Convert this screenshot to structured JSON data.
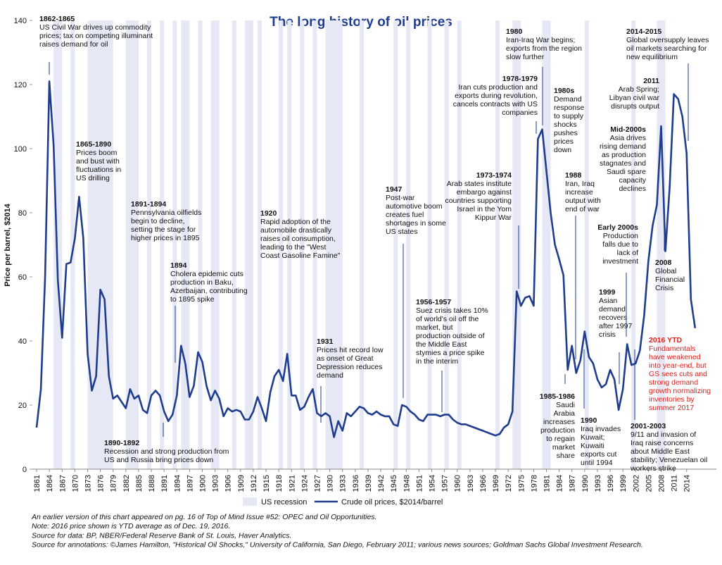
{
  "chart_data": {
    "type": "line",
    "title": "The long history of oil prices",
    "ylabel": "Price per barrel, $2014",
    "x": [
      1861,
      1862,
      1863,
      1864,
      1865,
      1866,
      1867,
      1868,
      1869,
      1870,
      1871,
      1872,
      1873,
      1874,
      1875,
      1876,
      1877,
      1878,
      1879,
      1880,
      1881,
      1882,
      1883,
      1884,
      1885,
      1886,
      1887,
      1888,
      1889,
      1890,
      1891,
      1892,
      1893,
      1894,
      1895,
      1896,
      1897,
      1898,
      1899,
      1900,
      1901,
      1902,
      1903,
      1904,
      1905,
      1906,
      1907,
      1908,
      1909,
      1910,
      1911,
      1912,
      1913,
      1914,
      1915,
      1916,
      1917,
      1918,
      1919,
      1920,
      1921,
      1922,
      1923,
      1924,
      1925,
      1926,
      1927,
      1928,
      1929,
      1930,
      1931,
      1932,
      1933,
      1934,
      1935,
      1936,
      1937,
      1938,
      1939,
      1940,
      1941,
      1942,
      1943,
      1944,
      1945,
      1946,
      1947,
      1948,
      1949,
      1950,
      1951,
      1952,
      1953,
      1954,
      1955,
      1956,
      1957,
      1958,
      1959,
      1960,
      1961,
      1962,
      1963,
      1964,
      1965,
      1966,
      1967,
      1968,
      1969,
      1970,
      1971,
      1972,
      1973,
      1974,
      1975,
      1976,
      1977,
      1978,
      1979,
      1980,
      1981,
      1982,
      1983,
      1984,
      1985,
      1986,
      1987,
      1988,
      1989,
      1990,
      1991,
      1992,
      1993,
      1994,
      1995,
      1996,
      1997,
      1998,
      1999,
      2000,
      2001,
      2002,
      2003,
      2004,
      2005,
      2006,
      2007,
      2008,
      2009,
      2010,
      2011,
      2012,
      2013,
      2014,
      2015,
      2016
    ],
    "series": [
      {
        "name": "Crude oil prices, $2014/barrel",
        "color": "#1f3c8f",
        "values": [
          13,
          25,
          60,
          121,
          101,
          59,
          41,
          64,
          64.5,
          72,
          85,
          72,
          36,
          24.5,
          29,
          56,
          53,
          29,
          22,
          23,
          21,
          19,
          25,
          22,
          23,
          18.5,
          17.5,
          23,
          24.5,
          23,
          18,
          15,
          17,
          23,
          38.5,
          33,
          22.5,
          26,
          36.5,
          33.5,
          26,
          21.5,
          24.5,
          22,
          16.5,
          19,
          18,
          18.5,
          18,
          15.5,
          15.5,
          18,
          22.5,
          19,
          15,
          24,
          29,
          31,
          27.5,
          36,
          23,
          23,
          18.5,
          19.5,
          22.5,
          25,
          17.5,
          16.5,
          17.5,
          16.5,
          10,
          15,
          12,
          17.5,
          16.5,
          18,
          19.5,
          19,
          17.5,
          17,
          18,
          17,
          16.5,
          16.5,
          14,
          13.5,
          20,
          19.5,
          18,
          17,
          15.5,
          15,
          17,
          17,
          17,
          16.5,
          17,
          17,
          15.5,
          14.5,
          14,
          14,
          13.5,
          13,
          12.5,
          12,
          11.5,
          11,
          10.5,
          11,
          13,
          14,
          18,
          55.5,
          51,
          53.5,
          54,
          51,
          103,
          106,
          93,
          80,
          70,
          65.5,
          60.5,
          31,
          38.5,
          30,
          34,
          43,
          35,
          33,
          28,
          25.5,
          26.5,
          31,
          28,
          18.5,
          25,
          39,
          32.5,
          33,
          37,
          48,
          65,
          76,
          82.5,
          107,
          68,
          88,
          117,
          115.5,
          110,
          98.5,
          53,
          44
        ]
      }
    ],
    "recession": {
      "name": "US recession",
      "color": "#e6e9f5",
      "periods": [
        [
          1865,
          1867
        ],
        [
          1869,
          1870
        ],
        [
          1873,
          1879
        ],
        [
          1882,
          1885
        ],
        [
          1887,
          1888
        ],
        [
          1890,
          1891
        ],
        [
          1893,
          1894
        ],
        [
          1895,
          1897
        ],
        [
          1899,
          1900
        ],
        [
          1902,
          1904
        ],
        [
          1907,
          1908
        ],
        [
          1910,
          1912
        ],
        [
          1913,
          1914
        ],
        [
          1918,
          1919
        ],
        [
          1920,
          1921
        ],
        [
          1923,
          1924
        ],
        [
          1926,
          1927
        ],
        [
          1929,
          1933
        ],
        [
          1937,
          1938
        ],
        [
          1945,
          1946
        ],
        [
          1948,
          1949
        ],
        [
          1953,
          1954
        ],
        [
          1957,
          1958
        ],
        [
          1960,
          1961
        ],
        [
          1969,
          1970
        ],
        [
          1973,
          1975
        ],
        [
          1980,
          1981
        ],
        [
          1981,
          1982
        ],
        [
          1990,
          1991
        ],
        [
          2001,
          2002
        ],
        [
          2007,
          2009
        ]
      ]
    },
    "xlim": [
      1860,
      2021
    ],
    "xticks": [
      1861,
      1864,
      1867,
      1870,
      1873,
      1876,
      1879,
      1882,
      1885,
      1888,
      1891,
      1894,
      1897,
      1900,
      1903,
      1906,
      1909,
      1912,
      1915,
      1918,
      1921,
      1924,
      1927,
      1930,
      1933,
      1936,
      1939,
      1942,
      1945,
      1948,
      1951,
      1954,
      1957,
      1960,
      1963,
      1966,
      1969,
      1972,
      1975,
      1978,
      1981,
      1984,
      1987,
      1990,
      1993,
      1996,
      1999,
      2002,
      2005,
      2008,
      2011,
      2014
    ],
    "ylim": [
      0,
      140
    ],
    "yticks": [
      0,
      20,
      40,
      60,
      80,
      100,
      120,
      140
    ],
    "annotations": [
      {
        "title": "1862-1865",
        "lines": [
          "US Civil War drives up commodity",
          "prices; tax on competing illuminant",
          "raises demand for oil"
        ]
      },
      {
        "title": "1865-1890",
        "lines": [
          "Prices boom",
          "and bust with",
          "fluctuations in",
          "US drilling"
        ]
      },
      {
        "title": "1891-1894",
        "lines": [
          "Pennsylvania oilfields",
          "begin to decline,",
          "setting the stage for",
          "higher prices in 1895"
        ]
      },
      {
        "title": "1894",
        "lines": [
          "Cholera epidemic cuts",
          "production in Baku,",
          "Azerbaijan, contributing",
          "to 1895 spike"
        ]
      },
      {
        "title": "1890-1892",
        "lines": [
          "Recession and strong production from",
          "US and Russia bring prices down"
        ]
      },
      {
        "title": "1920",
        "lines": [
          "Rapid adoption of the",
          "automobile drastically",
          "raises oil consumption,",
          "leading to the \"West",
          "Coast Gasoline Famine\""
        ]
      },
      {
        "title": "1931",
        "lines": [
          "Prices hit record low",
          "as onset of Great",
          "Depression reduces",
          "demand"
        ]
      },
      {
        "title": "1947",
        "lines": [
          "Post-war",
          "automotive boom",
          "creates fuel",
          "shortages in some",
          "US states"
        ]
      },
      {
        "title": "1956-1957",
        "lines": [
          "Suez crisis takes 10%",
          "of world's oil off the",
          "market, but",
          "production outside of",
          "the Middle East",
          "stymies a price spike",
          "in the interim"
        ]
      },
      {
        "title": "1973-1974",
        "lines": [
          "Arab states institute",
          "embargo against",
          "countries supporting",
          "Israel in the Yom",
          "Kippur War"
        ]
      },
      {
        "title": "1978-1979",
        "lines": [
          "Iran cuts production and",
          "exports during revolution,",
          "cancels contracts with US",
          "companies"
        ]
      },
      {
        "title": "1980",
        "lines": [
          "Iran-Iraq War begins;",
          "exports from the region",
          "slow further"
        ]
      },
      {
        "title": "1980s",
        "lines": [
          "Demand",
          "response",
          "to supply",
          "shocks",
          "pushes",
          "prices",
          "down"
        ]
      },
      {
        "title": "1985-1986",
        "lines": [
          "Saudi",
          "Arabia",
          "increases",
          "production",
          "to regain",
          "market",
          "share"
        ]
      },
      {
        "title": "1988",
        "lines": [
          "Iran, Iraq",
          "increase",
          "output with",
          "end of war"
        ]
      },
      {
        "title": "1990",
        "lines": [
          "Iraq invades",
          "Kuwait;",
          "Kuwaiti",
          "exports cut",
          "until 1994"
        ]
      },
      {
        "title": "1999",
        "lines": [
          "Asian",
          "demand",
          "recovers",
          "after 1997",
          "crisis"
        ]
      },
      {
        "title": "Early 2000s",
        "lines": [
          "Production",
          "falls due to",
          "lack of",
          "investment"
        ]
      },
      {
        "title": "Mid-2000s",
        "lines": [
          "Asia drives",
          "rising demand",
          "as production",
          "stagnates and",
          "Saudi spare",
          "capacity",
          "declines"
        ]
      },
      {
        "title": "2011",
        "lines": [
          "Arab Spring;",
          "Libyan civil war",
          "disrupts output"
        ]
      },
      {
        "title": "2014-2015",
        "lines": [
          "Global oversupply leaves",
          "oil markets searching for",
          "new equilibrium"
        ]
      },
      {
        "title": "2008",
        "lines": [
          "Global",
          "Financial",
          "Crisis"
        ]
      },
      {
        "title": "2001-2003",
        "lines": [
          "9/11 and invasion of",
          "Iraq raise concerns",
          "about Middle East",
          "stability; Venezuelan oil",
          "workers strike"
        ]
      },
      {
        "title": "2016 YTD",
        "color": "#e0201b",
        "lines": [
          "Fundamentals",
          "have weakened",
          "into year-end, but",
          "GS sees cuts and",
          "strong demand",
          "growth normalizing",
          "inventories by",
          "summer 2017"
        ]
      }
    ],
    "notes": [
      "An earlier version of this chart appeared on pg. 16 of Top of Mind Issue #52: OPEC and Oil Opportunities.",
      "Note: 2016 price shown is YTD average as of Dec. 19, 2016.",
      "Source for data: BP, NBER/Federal Reserve Bank of St. Louis, Haver Analytics.",
      "Source for annotations: ©James Hamilton, \"Historical Oil Shocks,\" University of California, San Diego, February 2011; various news sources; Goldman Sachs Global Investment Research."
    ]
  }
}
